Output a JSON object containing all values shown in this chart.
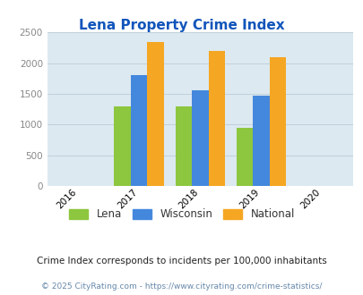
{
  "title": "Lena Property Crime Index",
  "years": [
    2017,
    2018,
    2019
  ],
  "lena": [
    1290,
    1300,
    950
  ],
  "wisconsin": [
    1800,
    1555,
    1475
  ],
  "national": [
    2350,
    2200,
    2100
  ],
  "colors": {
    "lena": "#8dc63f",
    "wisconsin": "#4488dd",
    "national": "#f5a623"
  },
  "xlim": [
    2015.5,
    2020.5
  ],
  "ylim": [
    0,
    2500
  ],
  "yticks": [
    0,
    500,
    1000,
    1500,
    2000,
    2500
  ],
  "xticks": [
    2016,
    2017,
    2018,
    2019,
    2020
  ],
  "bar_width": 0.27,
  "background_color": "#dce9f0",
  "legend_labels": [
    "Lena",
    "Wisconsin",
    "National"
  ],
  "footnote1": "Crime Index corresponds to incidents per 100,000 inhabitants",
  "footnote2": "© 2025 CityRating.com - https://www.cityrating.com/crime-statistics/",
  "title_color": "#1155bb",
  "tick_color": "#888888",
  "footnote1_color": "#222222",
  "footnote2_color": "#6688aa"
}
